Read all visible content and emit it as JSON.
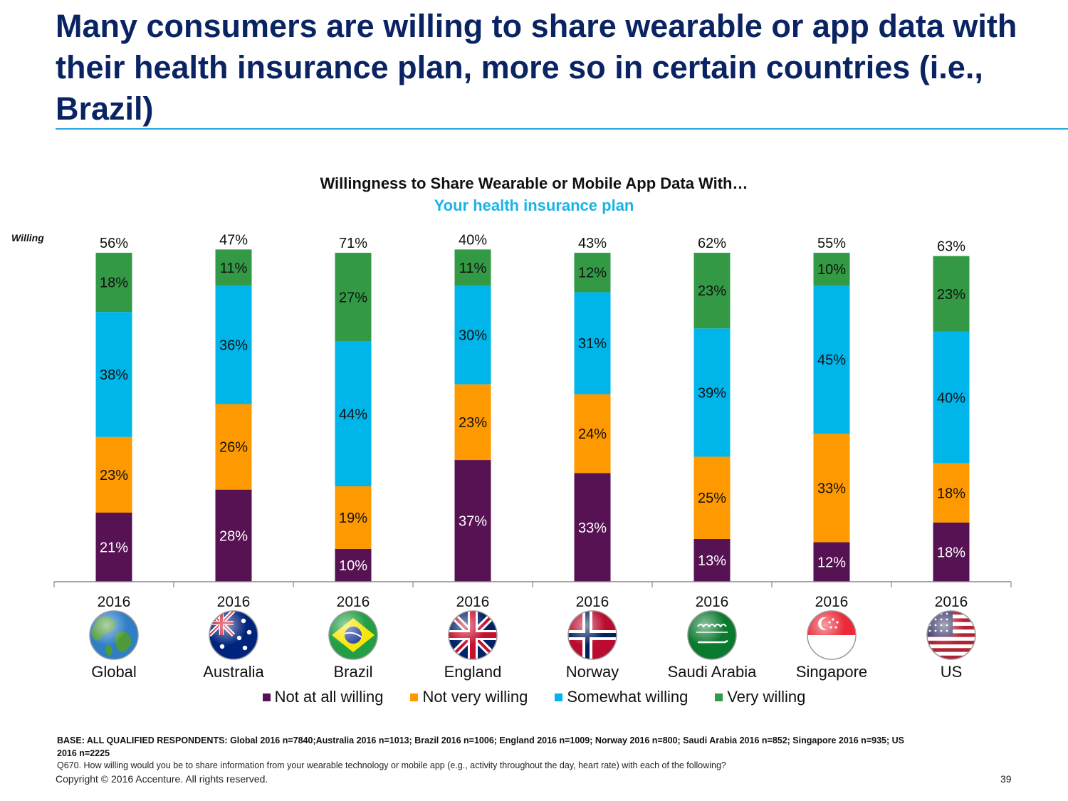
{
  "slide": {
    "headline": "Many consumers are willing to share wearable or app data with their health insurance plan, more so in certain countries (i.e., Brazil)",
    "base_note": "BASE: ALL QUALIFIED RESPONDENTS: Global 2016 n=7840;Australia 2016 n=1013; Brazil  2016 n=1006; England  2016 n=1009; Norway  2016 n=800; Saudi Arabia 2016 n=852; Singapore  2016 n=935; US 2016 n=2225",
    "question_note": "Q670.  How willing would you be to share information from your wearable technology or mobile app (e.g., activity throughout the day, heart rate) with each of the following?",
    "copyright": "Copyright © 2016 Accenture. All rights reserved.",
    "page_number": "39"
  },
  "chart_data": {
    "type": "bar",
    "stacked": true,
    "title": "Willingness to Share Wearable or Mobile App Data With…",
    "subtitle": "Your health insurance plan",
    "willing_label": "Willing",
    "categories": [
      "Global",
      "Australia",
      "Brazil",
      "England",
      "Norway",
      "Saudi Arabia",
      "Singapore",
      "US"
    ],
    "year_labels": [
      "2016",
      "2016",
      "2016",
      "2016",
      "2016",
      "2016",
      "2016",
      "2016"
    ],
    "willing_totals": [
      "56%",
      "47%",
      "71%",
      "40%",
      "43%",
      "62%",
      "55%",
      "63%"
    ],
    "series": [
      {
        "name": "Not at all willing",
        "color": "#561252",
        "values": [
          21,
          28,
          10,
          37,
          33,
          13,
          12,
          18
        ]
      },
      {
        "name": "Not very willing",
        "color": "#ff9900",
        "values": [
          23,
          26,
          19,
          23,
          24,
          25,
          33,
          18
        ]
      },
      {
        "name": "Somewhat willing",
        "color": "#00b5e9",
        "values": [
          38,
          36,
          44,
          30,
          31,
          39,
          45,
          40
        ]
      },
      {
        "name": "Very willing",
        "color": "#339944",
        "values": [
          18,
          11,
          27,
          11,
          12,
          23,
          10,
          23
        ]
      }
    ],
    "legend_position": "bottom",
    "ylim": [
      0,
      100
    ],
    "icons": [
      "globe-icon",
      "australia-flag-icon",
      "brazil-flag-icon",
      "uk-flag-icon",
      "norway-flag-icon",
      "saudi-arabia-flag-icon",
      "singapore-flag-icon",
      "us-flag-icon"
    ]
  }
}
